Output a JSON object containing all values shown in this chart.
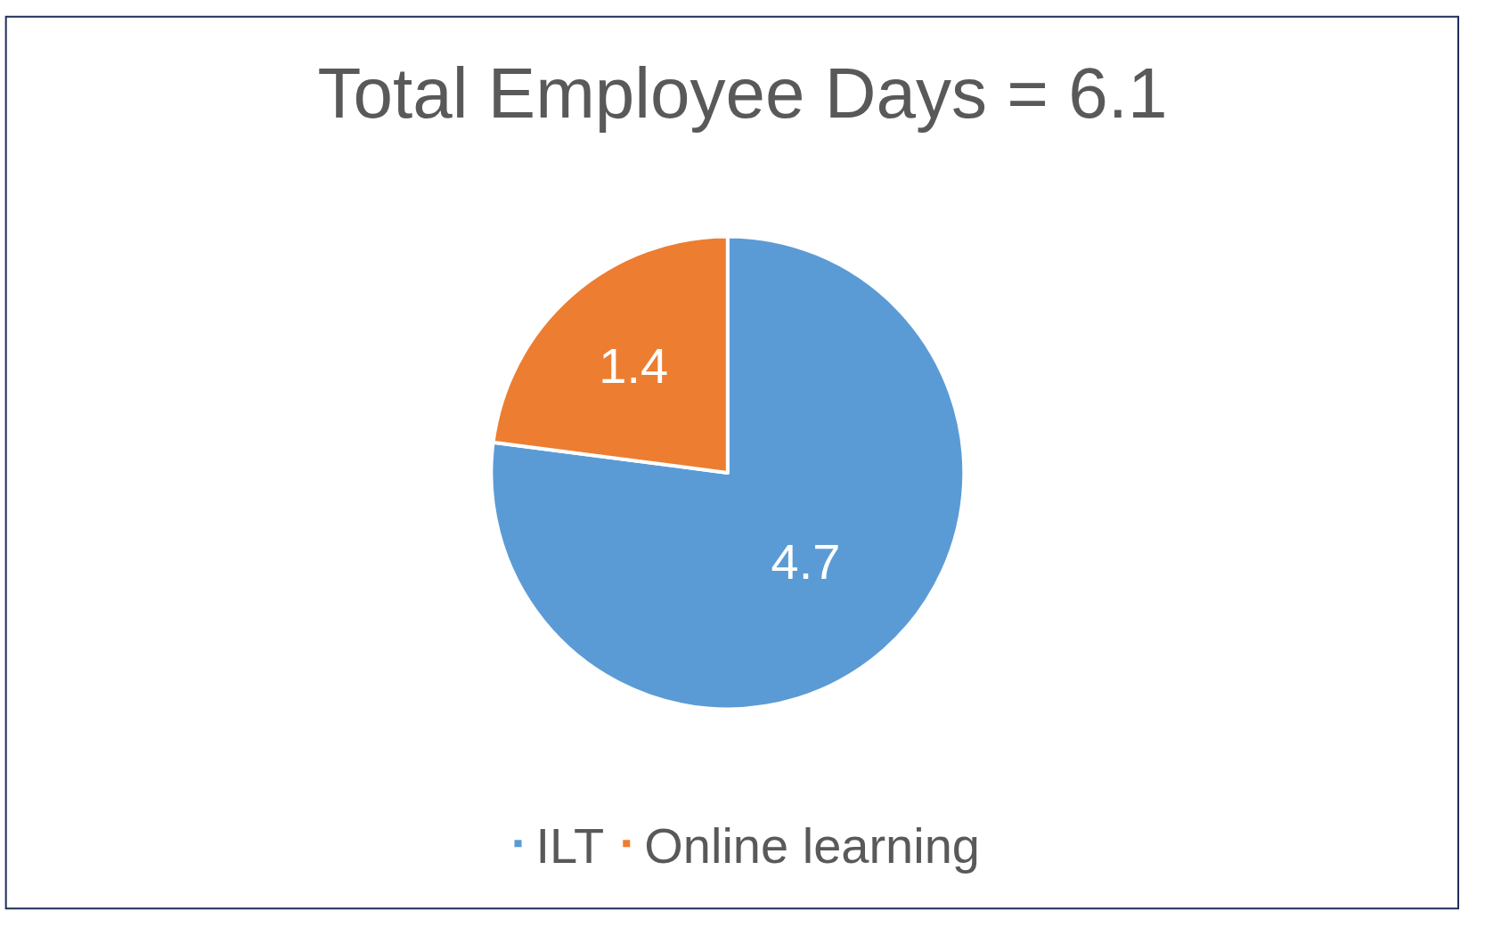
{
  "chart_data": {
    "type": "pie",
    "title": "Total Employee Days = 6.1",
    "categories": [
      "ILT",
      "Online learning"
    ],
    "values": [
      4.7,
      1.4
    ],
    "colors": [
      "#5b9bd5",
      "#ed7d31"
    ],
    "data_labels": true,
    "legend": "bottom"
  }
}
